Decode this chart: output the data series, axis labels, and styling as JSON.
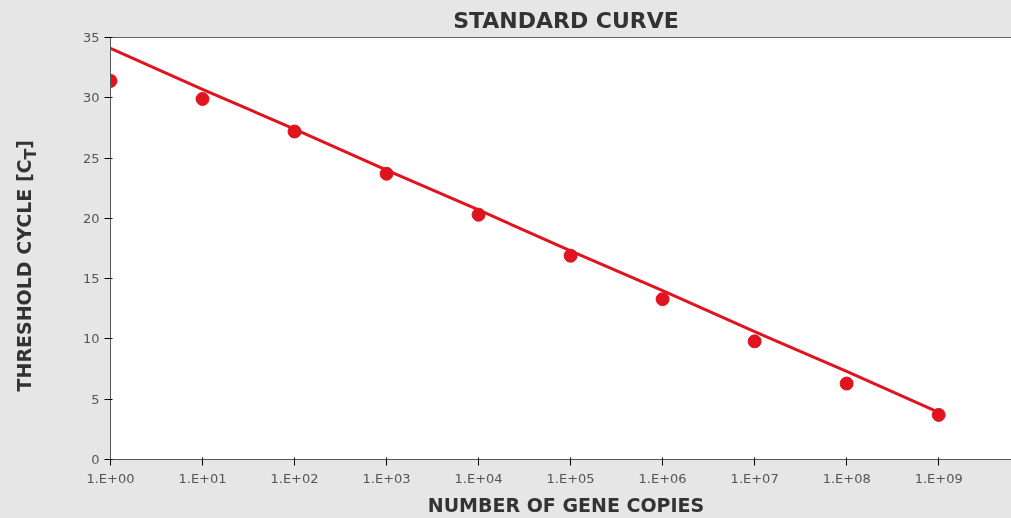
{
  "chart_data": {
    "type": "scatter",
    "title": "STANDARD CURVE",
    "xlabel": "NUMBER OF GENE COPIES",
    "ylabel": "THRESHOLD CYCLE [C$_{T}$]",
    "categories": [
      "1.E+00",
      "1.E+01",
      "1.E+02",
      "1.E+03",
      "1.E+04",
      "1.E+05",
      "1.E+06",
      "1.E+07",
      "1.E+08",
      "1.E+09"
    ],
    "series": [
      {
        "color": "#e0141e",
        "marker": "circle",
        "values": [
          31.4,
          29.9,
          27.2,
          23.7,
          20.3,
          16.9,
          13.3,
          9.8,
          6.3,
          3.7
        ]
      },
      {
        "type": "line",
        "color": "#e0141e",
        "marker": "none",
        "values": [
          34.1,
          30.7,
          27.4,
          24.0,
          20.7,
          17.3,
          14.0,
          10.6,
          7.3,
          3.9
        ]
      }
    ],
    "grid": false,
    "legend": false,
    "ylim": [
      0,
      35
    ],
    "yticks": [
      0,
      5,
      10,
      15,
      20,
      25,
      30,
      35
    ]
  }
}
